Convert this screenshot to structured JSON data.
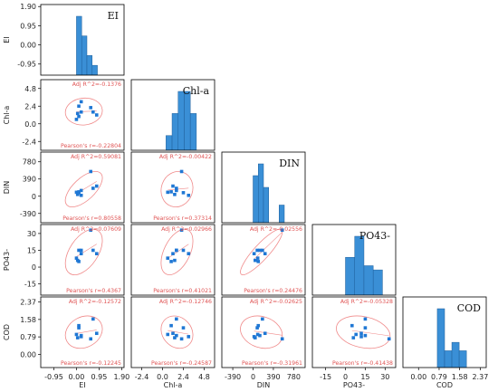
{
  "chart_data": {
    "type": "scatter-matrix",
    "variables": [
      "EI",
      "Chl-a",
      "DIN",
      "PO43-",
      "COD"
    ],
    "ticks": [
      [
        "-0.95",
        "0.00",
        "0.95",
        "1.90"
      ],
      [
        "-2.4",
        "0.0",
        "2.4",
        "4.8"
      ],
      [
        "-390",
        "0",
        "390",
        "780"
      ],
      [
        "-15",
        "0",
        "15",
        "30"
      ],
      [
        "0.00",
        "0.79",
        "1.58",
        "2.37"
      ]
    ],
    "y_ticks_override": {
      "EI": [
        "-0.95",
        "0.00",
        "0.95",
        "1.90"
      ],
      "Chl-a": [
        "-2.4",
        "0.0",
        "2.4",
        "4.8"
      ]
    },
    "ranges": [
      [
        -1.5,
        2.0
      ],
      [
        -3.6,
        6.0
      ],
      [
        -600,
        1000
      ],
      [
        -25,
        38
      ],
      [
        -0.6,
        2.6
      ]
    ],
    "observations": {
      "EI": [
        0.2,
        0.1,
        0.05,
        0.2,
        0.0,
        0.7,
        0.85,
        0.6,
        0.1
      ],
      "Chl-a": [
        3.0,
        2.4,
        1.4,
        1.6,
        0.6,
        1.6,
        1.2,
        2.2,
        1.0
      ],
      "DIN": [
        20,
        80,
        40,
        130,
        90,
        180,
        230,
        560,
        100
      ],
      "PO43-": [
        12,
        15,
        6,
        15,
        8,
        15,
        12,
        33,
        5
      ],
      "COD": [
        0.8,
        1.2,
        0.75,
        0.85,
        0.9,
        1.6,
        0.95,
        0.7,
        1.3
      ]
    },
    "histograms": [
      {
        "variable": "EI",
        "edges": [
          0.0,
          0.22,
          0.44,
          0.66,
          0.88
        ],
        "counts": [
          6,
          4,
          2,
          1
        ]
      },
      {
        "variable": "Chl-a",
        "edges": [
          0.4,
          1.1,
          1.8,
          2.5,
          3.2,
          3.9
        ],
        "counts": [
          2,
          5,
          8,
          8,
          5
        ]
      },
      {
        "variable": "DIN",
        "edges": [
          0,
          100,
          200,
          300,
          400,
          500,
          600
        ],
        "counts": [
          8,
          10,
          6,
          0,
          0,
          3
        ]
      },
      {
        "variable": "PO43-",
        "edges": [
          0,
          7,
          14,
          21,
          28
        ],
        "counts": [
          9,
          14,
          7,
          6
        ]
      },
      {
        "variable": "COD",
        "edges": [
          0.72,
          1.0,
          1.28,
          1.56,
          1.84
        ],
        "counts": [
          7,
          2,
          3,
          2
        ]
      }
    ],
    "pairs": [
      {
        "x": "EI",
        "y": "Chl-a",
        "adj_r2": "Adj R^2=-0.1376",
        "pearson": "Pearson's r=-0.22804"
      },
      {
        "x": "EI",
        "y": "DIN",
        "adj_r2": "Adj R^2=0.59081",
        "pearson": "Pearson's r=0.80558"
      },
      {
        "x": "Chl-a",
        "y": "DIN",
        "adj_r2": "Adj R^2=-0.00422",
        "pearson": "Pearson's r=0.37314"
      },
      {
        "x": "EI",
        "y": "PO43-",
        "adj_r2": "Adj R^2=0.07609",
        "pearson": "Pearson's r=0.4367"
      },
      {
        "x": "Chl-a",
        "y": "PO43-",
        "adj_r2": "Adj R^2=0.02966",
        "pearson": "Pearson's r=0.41021"
      },
      {
        "x": "DIN",
        "y": "PO43-",
        "adj_r2": "Adj R^2=-0.02556",
        "pearson": "Pearson's r=0.24476"
      },
      {
        "x": "EI",
        "y": "COD",
        "adj_r2": "Adj R^2=-0.12572",
        "pearson": "Pearson's r=-0.12245"
      },
      {
        "x": "Chl-a",
        "y": "COD",
        "adj_r2": "Adj R^2=-0.12746",
        "pearson": "Pearson's r=-0.24587"
      },
      {
        "x": "DIN",
        "y": "COD",
        "adj_r2": "Adj R^2=-0.02625",
        "pearson": "Pearson's r=-0.31961"
      },
      {
        "x": "PO43-",
        "y": "COD",
        "adj_r2": "Adj R^2=-0.05328",
        "pearson": "Pearson's r=-0.41438"
      }
    ],
    "colors": {
      "point": "#1f77d4",
      "bar": "#3a8fd6",
      "ellipse": "#f08a8a",
      "stat_text": "#e05555",
      "frame": "#000000"
    },
    "grid": false
  }
}
